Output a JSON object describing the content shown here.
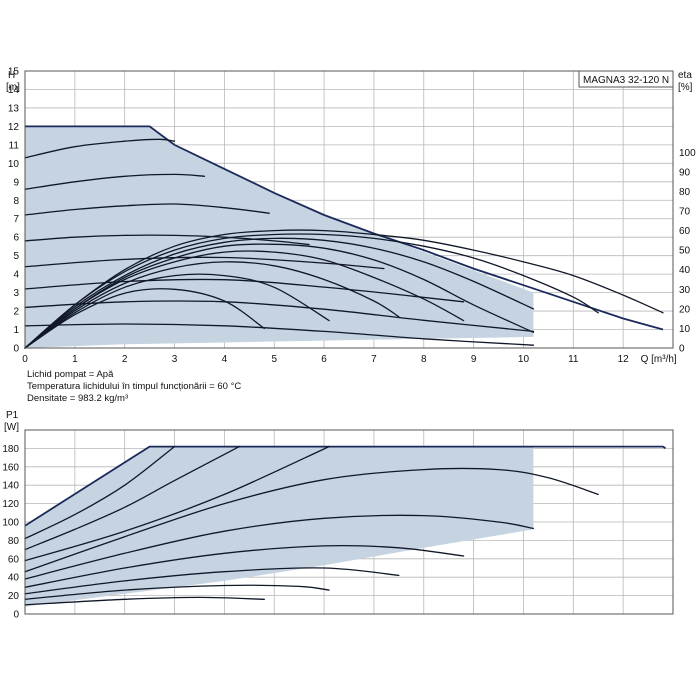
{
  "chart_data": [
    {
      "type": "line",
      "title": "MAGNA3 32-120 N",
      "xlabel": "Q [m³/h]",
      "ylabel_top": "H",
      "ylabel_unit": "[m]",
      "y2label_top": "eta",
      "y2label_unit": "[%]",
      "xlim": [
        0,
        13
      ],
      "ylim": [
        0,
        15
      ],
      "y2lim": [
        0,
        100
      ],
      "x_ticks": [
        "0",
        "1",
        "2",
        "3",
        "4",
        "5",
        "6",
        "7",
        "8",
        "9",
        "10",
        "11",
        "12"
      ],
      "x_ticks_unit": "Q [m³/h]",
      "y_ticks": [
        "0",
        "1",
        "2",
        "3",
        "4",
        "5",
        "6",
        "7",
        "8",
        "9",
        "10",
        "11",
        "12",
        "13",
        "14",
        "15"
      ],
      "y2_ticks": [
        "0",
        "10",
        "20",
        "30",
        "40",
        "50",
        "60",
        "70",
        "80",
        "90",
        "100"
      ],
      "grid": true,
      "operating_area": {
        "q": [
          0,
          2.5,
          3,
          4,
          5,
          6,
          7,
          8,
          9,
          10.2,
          10.2,
          8,
          6,
          4,
          2,
          0
        ],
        "h": [
          12,
          12,
          11.0,
          9.7,
          8.4,
          7.2,
          6.2,
          5.2,
          4.2,
          3.0,
          0.6,
          0.5,
          0.4,
          0.3,
          0.2,
          0
        ]
      },
      "series": [
        {
          "role": "head",
          "q": [
            0,
            2.5,
            3,
            4,
            5,
            6,
            7,
            8,
            9,
            10,
            11,
            12,
            12.8
          ],
          "h": [
            12,
            12,
            11.0,
            9.7,
            8.4,
            7.2,
            6.2,
            5.3,
            4.3,
            3.4,
            2.5,
            1.6,
            1.0
          ]
        },
        {
          "role": "head",
          "q": [
            0,
            1,
            2,
            2.7,
            3
          ],
          "h": [
            10.3,
            10.9,
            11.2,
            11.3,
            11.2
          ]
        },
        {
          "role": "head",
          "q": [
            0,
            1,
            2,
            3,
            3.6
          ],
          "h": [
            8.6,
            9.0,
            9.3,
            9.4,
            9.3
          ]
        },
        {
          "role": "head",
          "q": [
            0,
            1,
            2,
            3,
            4,
            4.9
          ],
          "h": [
            7.2,
            7.5,
            7.7,
            7.8,
            7.6,
            7.3
          ]
        },
        {
          "role": "head",
          "q": [
            0,
            1,
            2,
            3,
            4,
            5,
            5.7
          ],
          "h": [
            5.8,
            6.0,
            6.1,
            6.1,
            6.0,
            5.8,
            5.6
          ]
        },
        {
          "role": "head",
          "q": [
            0,
            2,
            4,
            6,
            7.2
          ],
          "h": [
            4.4,
            4.8,
            4.9,
            4.6,
            4.3
          ]
        },
        {
          "role": "head",
          "q": [
            0,
            2,
            4,
            6,
            7.8,
            8.8
          ],
          "h": [
            3.2,
            3.6,
            3.7,
            3.3,
            2.8,
            2.5
          ]
        },
        {
          "role": "head",
          "q": [
            0,
            2,
            4,
            6,
            8,
            10.2
          ],
          "h": [
            2.2,
            2.5,
            2.5,
            2.1,
            1.5,
            0.9
          ]
        },
        {
          "role": "head",
          "q": [
            0,
            2,
            4,
            6,
            8,
            10.2
          ],
          "h": [
            1.2,
            1.3,
            1.2,
            0.9,
            0.5,
            0.15
          ]
        },
        {
          "role": "eta",
          "q": [
            0,
            1,
            2,
            3,
            4,
            5,
            6,
            7,
            8,
            9,
            10,
            11,
            12,
            12.8
          ],
          "eta": [
            0,
            22,
            40,
            52,
            58,
            60,
            60,
            58,
            55,
            50,
            44,
            37,
            27,
            18
          ]
        },
        {
          "role": "eta",
          "q": [
            0,
            1,
            2,
            3,
            4,
            5,
            6,
            7,
            8,
            9,
            10,
            11,
            11.5
          ],
          "eta": [
            0,
            22,
            39,
            50,
            56,
            58,
            58,
            56,
            52,
            46,
            37,
            26,
            18
          ]
        },
        {
          "role": "eta",
          "q": [
            0,
            1,
            2,
            3,
            4,
            5,
            6,
            7,
            8,
            9,
            10.2
          ],
          "eta": [
            0,
            21,
            37,
            48,
            54,
            56,
            55,
            51,
            44,
            34,
            20
          ]
        },
        {
          "role": "eta",
          "q": [
            0,
            1,
            2,
            3,
            4,
            5,
            6,
            7,
            8,
            9,
            10.2
          ],
          "eta": [
            0,
            20,
            36,
            46,
            52,
            53,
            51,
            45,
            35,
            22,
            8
          ]
        },
        {
          "role": "eta",
          "q": [
            0,
            1,
            2,
            3,
            4,
            5,
            6,
            7,
            8,
            8.8
          ],
          "eta": [
            0,
            20,
            35,
            44,
            49,
            49,
            45,
            36,
            25,
            14
          ]
        },
        {
          "role": "eta",
          "q": [
            0,
            1,
            2,
            3,
            4,
            5,
            6,
            7,
            7.5
          ],
          "eta": [
            0,
            19,
            33,
            41,
            44,
            42,
            35,
            24,
            16
          ]
        },
        {
          "role": "eta",
          "q": [
            0,
            1,
            2,
            3,
            4,
            5,
            6.1
          ],
          "eta": [
            0,
            18,
            31,
            37,
            37,
            31,
            14
          ]
        },
        {
          "role": "eta",
          "q": [
            0,
            1,
            2,
            3,
            4,
            4.8
          ],
          "eta": [
            0,
            17,
            28,
            30,
            24,
            10
          ]
        }
      ]
    },
    {
      "type": "line",
      "ylabel_top": "P1",
      "ylabel_unit": "[W]",
      "xlim": [
        0,
        13
      ],
      "ylim": [
        0,
        200
      ],
      "y_ticks": [
        "0",
        "20",
        "40",
        "60",
        "80",
        "100",
        "120",
        "140",
        "160",
        "180"
      ],
      "grid": true,
      "operating_area": {
        "q": [
          0,
          2.5,
          10.2,
          10.2,
          8,
          6,
          4,
          2,
          0
        ],
        "p": [
          96,
          182,
          182,
          92,
          72,
          53,
          36,
          22,
          8
        ]
      },
      "series": [
        {
          "q": [
            0,
            2.5,
            12.8,
            12.85
          ],
          "p": [
            96,
            182,
            182,
            180
          ]
        },
        {
          "q": [
            0,
            1,
            2,
            3
          ],
          "p": [
            82,
            108,
            140,
            182
          ]
        },
        {
          "q": [
            0,
            1,
            2,
            3,
            4.3
          ],
          "p": [
            70,
            92,
            116,
            145,
            182
          ]
        },
        {
          "q": [
            0,
            2,
            4,
            6.1
          ],
          "p": [
            58,
            90,
            130,
            182
          ]
        },
        {
          "q": [
            0,
            2,
            4,
            6,
            8,
            9.5,
            10.5,
            11.5
          ],
          "p": [
            46,
            84,
            120,
            146,
            157,
            157,
            148,
            130
          ]
        },
        {
          "q": [
            0,
            2,
            4,
            6,
            8,
            9.5,
            10.2
          ],
          "p": [
            38,
            66,
            90,
            104,
            107,
            100,
            93
          ]
        },
        {
          "q": [
            0,
            2,
            4,
            6,
            7.5,
            8.8
          ],
          "p": [
            29,
            50,
            66,
            74,
            72,
            63
          ]
        },
        {
          "q": [
            0,
            2,
            4,
            6,
            7.5
          ],
          "p": [
            22,
            36,
            46,
            50,
            42
          ]
        },
        {
          "q": [
            0,
            2,
            4,
            5.5,
            6.1
          ],
          "p": [
            16,
            26,
            31,
            30,
            26
          ]
        },
        {
          "q": [
            0,
            2,
            3.5,
            4.8
          ],
          "p": [
            10,
            16,
            18,
            16
          ]
        }
      ]
    }
  ],
  "notes": {
    "liquid": "Lichid pompat = Apă",
    "temperature": "Temperatura lichidului în timpul funcționării = 60 °C",
    "density": "Densitate = 983.2 kg/m³"
  }
}
